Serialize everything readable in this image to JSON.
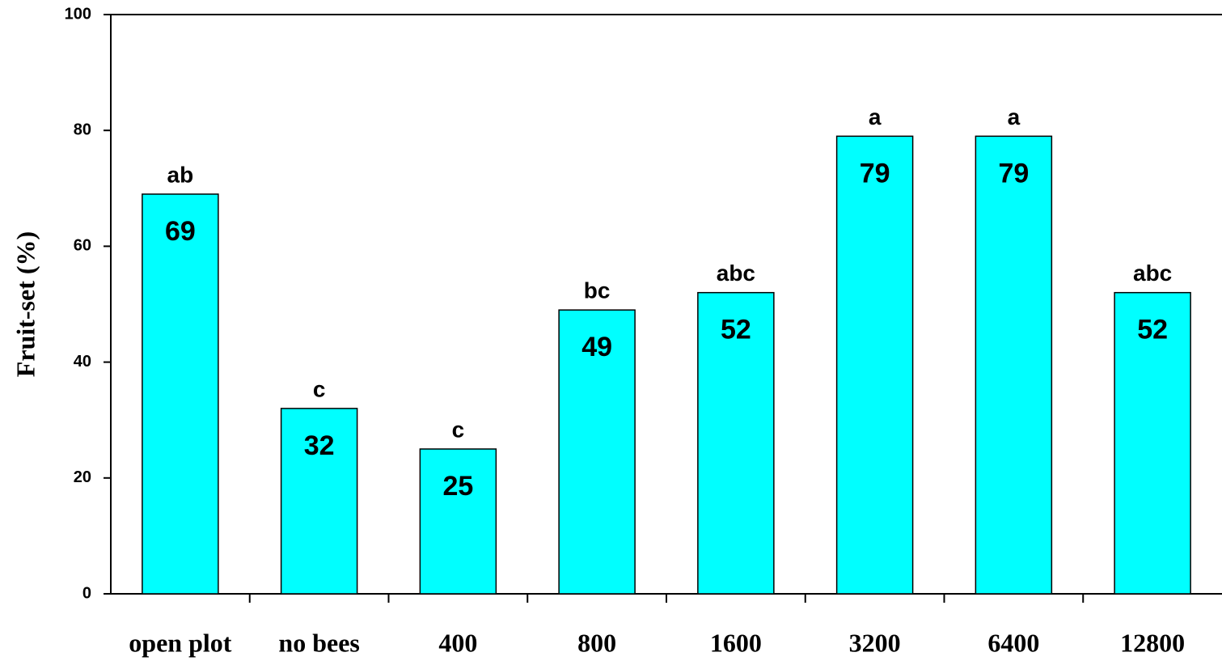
{
  "chart_data": {
    "type": "bar",
    "y_label": "Fruit-set (%)",
    "categories": [
      "open plot",
      "no bees",
      "400",
      "800",
      "1600",
      "3200",
      "6400",
      "12800"
    ],
    "values": [
      69,
      32,
      25,
      49,
      52,
      79,
      79,
      52
    ],
    "annotations": [
      "ab",
      "c",
      "c",
      "bc",
      "abc",
      "a",
      "a",
      "abc"
    ],
    "color": "#00ffff",
    "ylim": [
      0,
      100
    ],
    "yticks": [
      0,
      20,
      40,
      60,
      80,
      100
    ],
    "grid": false
  }
}
